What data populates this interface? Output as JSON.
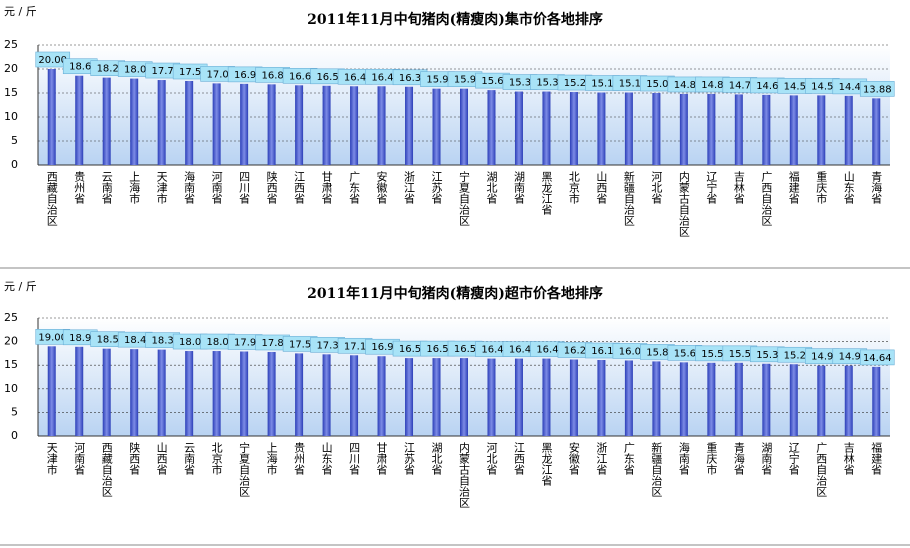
{
  "chart_data": [
    {
      "type": "bar",
      "title": "2011年11月中旬猪肉(精瘦肉)集市价各地排序",
      "y_label": "元 / 斤",
      "color": "#4a5ccf",
      "categories": [
        "西藏自治区",
        "贵州省",
        "云南省",
        "上海市",
        "天津市",
        "海南省",
        "河南省",
        "四川省",
        "陕西省",
        "江西省",
        "甘肃省",
        "广东省",
        "安徽省",
        "浙江省",
        "江苏省",
        "宁夏自治区",
        "湖北省",
        "湖南省",
        "黑龙江省",
        "北京市",
        "山西省",
        "新疆自治区",
        "河北省",
        "内蒙古自治区",
        "辽宁省",
        "吉林省",
        "广西自治区",
        "福建省",
        "重庆市",
        "山东省",
        "青海省"
      ],
      "values": [
        20,
        18.6,
        18.2,
        18,
        17.7,
        17.5,
        17,
        16.9,
        16.8,
        16.6,
        16.5,
        16.4,
        16.4,
        16.3,
        15.9,
        15.9,
        15.6,
        15.3,
        15.3,
        15.2,
        15.1,
        15.1,
        15,
        14.8,
        14.8,
        14.7,
        14.6,
        14.5,
        14.5,
        14.4,
        13.88
      ],
      "value_labels": [
        "20.00",
        "18.6",
        "18.2",
        "18.0",
        "17.7",
        "17.5",
        "17.0",
        "16.9",
        "16.8",
        "16.6",
        "16.5",
        "16.4",
        "16.4",
        "16.3",
        "15.9",
        "15.9",
        "15.6",
        "15.3",
        "15.3",
        "15.2",
        "15.1",
        "15.1",
        "15.0",
        "14.8",
        "14.8",
        "14.7",
        "14.6",
        "14.5",
        "14.5",
        "14.4",
        "13.88"
      ],
      "ylim": [
        0,
        25
      ],
      "yticks": [
        0,
        5,
        10,
        15,
        20,
        25
      ],
      "grid": true
    },
    {
      "type": "bar",
      "title": "2011年11月中旬猪肉(精瘦肉)超市价各地排序",
      "y_label": "元 / 斤",
      "color": "#4a5ccf",
      "categories": [
        "天津市",
        "河南省",
        "西藏自治区",
        "陕西省",
        "山西省",
        "云南省",
        "北京市",
        "宁夏自治区",
        "上海市",
        "贵州省",
        "山东省",
        "四川省",
        "甘肃省",
        "江苏省",
        "湖北省",
        "内蒙古自治区",
        "河北省",
        "江西省",
        "黑龙江省",
        "安徽省",
        "浙江省",
        "广东省",
        "新疆自治区",
        "海南省",
        "重庆市",
        "青海省",
        "湖南省",
        "辽宁省",
        "广西自治区",
        "吉林省",
        "福建省"
      ],
      "values": [
        19,
        18.9,
        18.5,
        18.4,
        18.3,
        18,
        18,
        17.9,
        17.8,
        17.5,
        17.3,
        17.1,
        16.9,
        16.5,
        16.5,
        16.5,
        16.4,
        16.4,
        16.4,
        16.2,
        16.1,
        16,
        15.8,
        15.6,
        15.5,
        15.5,
        15.3,
        15.2,
        14.9,
        14.9,
        14.64
      ],
      "value_labels": [
        "19.00",
        "18.9",
        "18.5",
        "18.4",
        "18.3",
        "18.0",
        "18.0",
        "17.9",
        "17.8",
        "17.5",
        "17.3",
        "17.1",
        "16.9",
        "16.5",
        "16.5",
        "16.5",
        "16.4",
        "16.4",
        "16.4",
        "16.2",
        "16.1",
        "16.0",
        "15.8",
        "15.6",
        "15.5",
        "15.5",
        "15.3",
        "15.2",
        "14.9",
        "14.9",
        "14.64"
      ],
      "ylim": [
        0,
        25
      ],
      "yticks": [
        0,
        5,
        10,
        15,
        20,
        25
      ],
      "grid": true
    }
  ]
}
